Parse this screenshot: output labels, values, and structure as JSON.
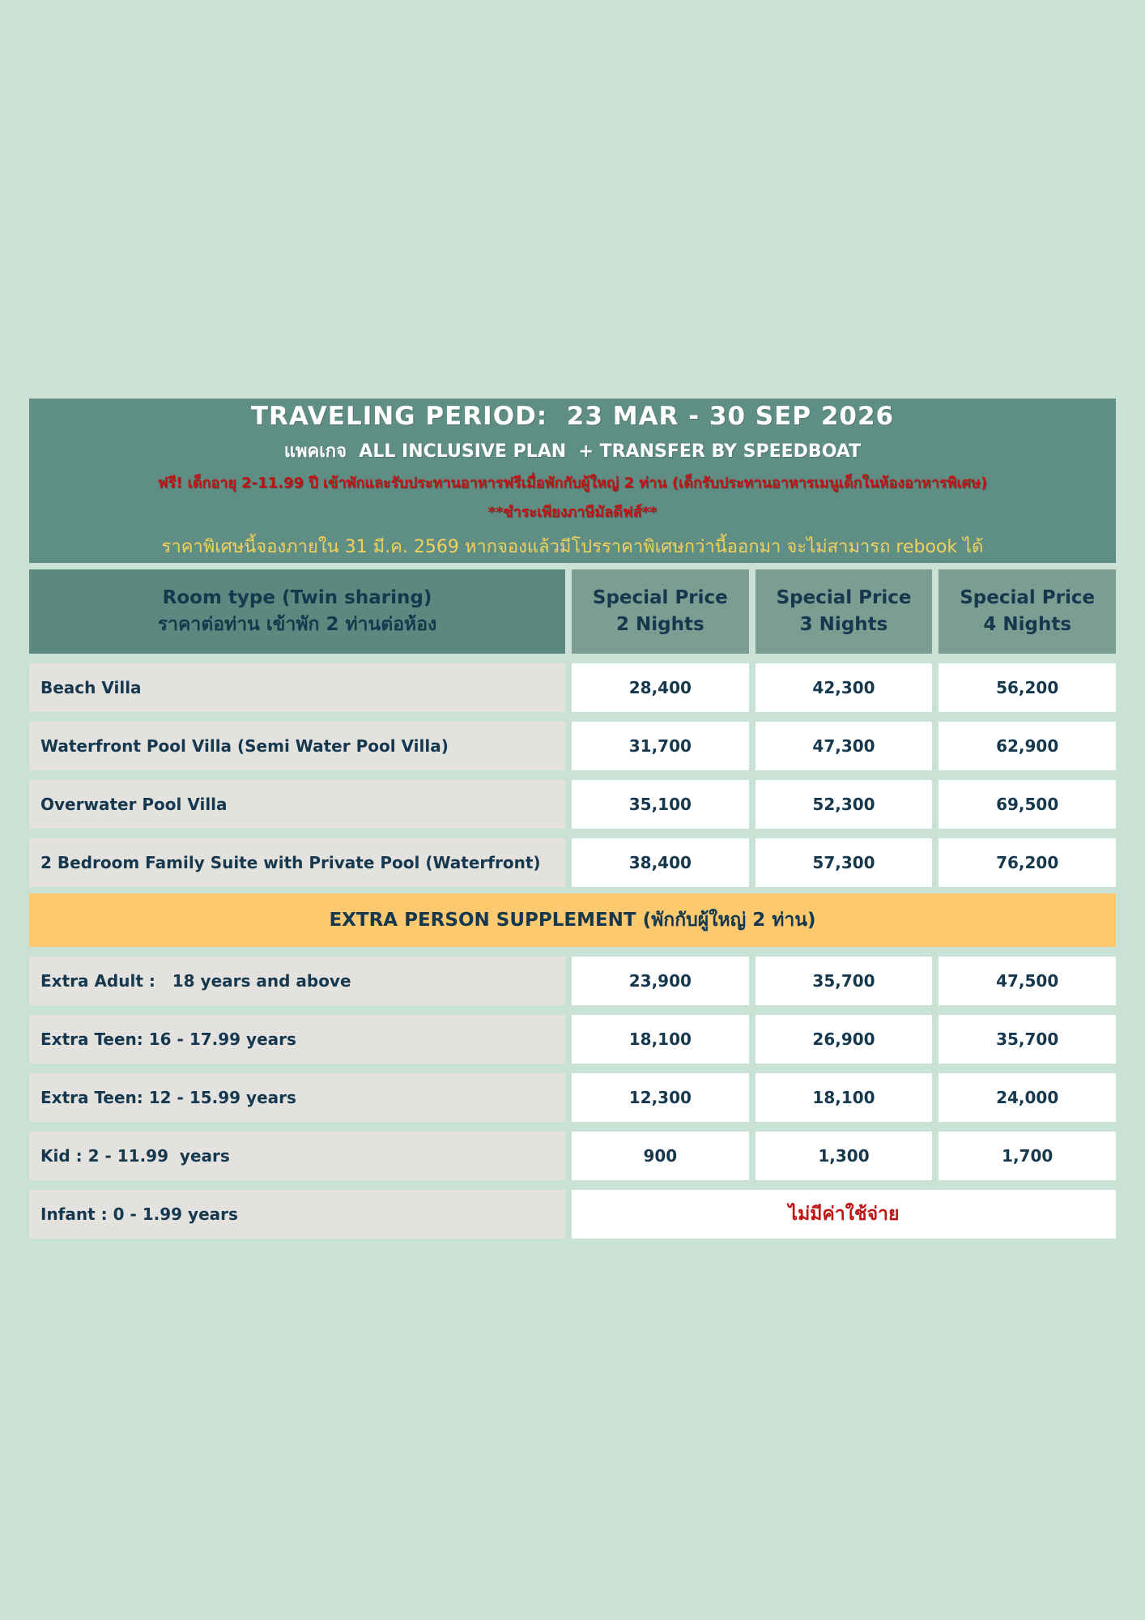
{
  "banner": {
    "title": "TRAVELING PERIOD:  23 MAR - 30 SEP 2026",
    "subtitle": "แพคเกจ  ALL INCLUSIVE PLAN  + TRANSFER BY SPEEDBOAT",
    "promo_line1": "ฟรี! เด็กอายุ 2-11.99 ปี เข้าพักและรับประทานอาหารฟรีเมื่อพักกับผู้ใหญ่ 2 ท่าน (เด็กรับประทานอาหารเมนูเด็กในห้องอาหารพิเศษ)",
    "promo_line2": "**ชำระเพียงภาษีมัลดีฟส์**",
    "booking_note": "ราคาพิเศษนี้จองภายใน 31 มี.ค. 2569 หากจองแล้วมีโปรราคาพิเศษกว่านี้ออกมา จะไม่สามารถ rebook ได้"
  },
  "table": {
    "header": {
      "room_type_en": "Room type (Twin sharing)",
      "room_type_th": "ราคาต่อท่าน เข้าพัก 2 ท่านต่อห้อง",
      "price_cols": [
        {
          "label": "Special Price",
          "nights": "2 Nights"
        },
        {
          "label": "Special Price",
          "nights": "3 Nights"
        },
        {
          "label": "Special Price",
          "nights": "4 Nights"
        }
      ]
    },
    "room_rows": [
      {
        "label": "Beach Villa",
        "p2": "28,400",
        "p3": "42,300",
        "p4": "56,200"
      },
      {
        "label": "Waterfront Pool Villa (Semi Water Pool Villa)",
        "p2": "31,700",
        "p3": "47,300",
        "p4": "62,900"
      },
      {
        "label": "Overwater Pool Villa",
        "p2": "35,100",
        "p3": "52,300",
        "p4": "69,500"
      },
      {
        "label": "2 Bedroom Family Suite with Private Pool (Waterfront)",
        "p2": "38,400",
        "p3": "57,300",
        "p4": "76,200"
      }
    ],
    "supplement_header": "EXTRA PERSON SUPPLEMENT (พักกับผู้ใหญ่ 2 ท่าน)",
    "supplement_rows": [
      {
        "label": "Extra Adult :   18 years and above",
        "p2": "23,900",
        "p3": "35,700",
        "p4": "47,500"
      },
      {
        "label": "Extra Teen: 16 - 17.99 years",
        "p2": "18,100",
        "p3": "26,900",
        "p4": "35,700"
      },
      {
        "label": "Extra Teen: 12 - 15.99 years",
        "p2": "12,300",
        "p3": "18,100",
        "p4": "24,000"
      },
      {
        "label": "Kid : 2 - 11.99  years",
        "p2": "900",
        "p3": "1,300",
        "p4": "1,700"
      }
    ],
    "infant_row": {
      "label": "Infant : 0 - 1.99 years",
      "value": "ไม่มีค่าใช้จ่าย"
    }
  },
  "colors": {
    "page_background": "#c9e2d5",
    "banner_green": "#5f8e85",
    "header_dark_green": "#5c897f",
    "header_light_green": "#7b9d92",
    "label_gray": "#e3e2df",
    "supplement_orange": "#fcc96e",
    "text_navy": "#16384e",
    "text_red": "#c01414",
    "text_yellow": "#f2d159"
  }
}
